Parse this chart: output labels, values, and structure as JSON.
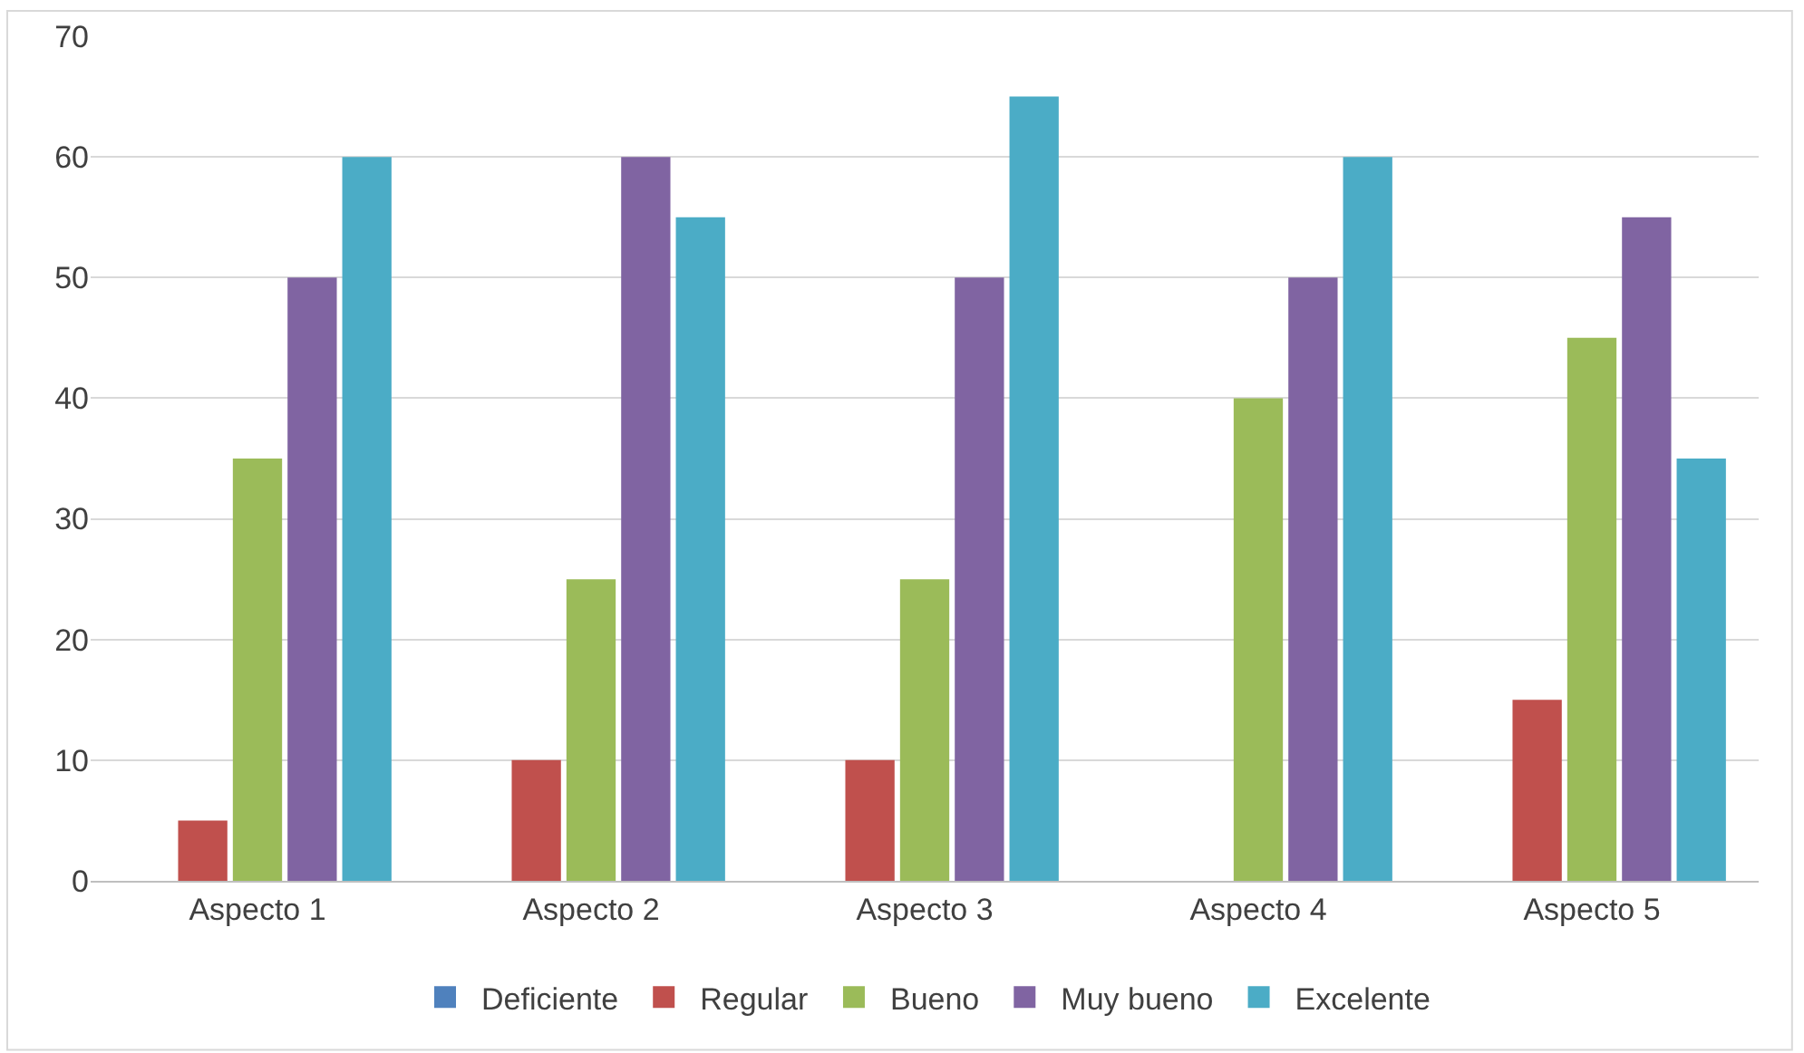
{
  "chart_data": {
    "type": "bar",
    "categories": [
      "Aspecto 1",
      "Aspecto 2",
      "Aspecto 3",
      "Aspecto 4",
      "Aspecto 5"
    ],
    "series": [
      {
        "name": "Deficiente",
        "color": "#4f81bd",
        "values": [
          0,
          0,
          0,
          0,
          0
        ]
      },
      {
        "name": "Regular",
        "color": "#c0504d",
        "values": [
          5,
          10,
          10,
          0,
          15
        ]
      },
      {
        "name": "Bueno",
        "color": "#9bbb59",
        "values": [
          35,
          25,
          25,
          40,
          45
        ]
      },
      {
        "name": "Muy bueno",
        "color": "#8064a2",
        "values": [
          50,
          60,
          50,
          50,
          55
        ]
      },
      {
        "name": "Excelente",
        "color": "#4bacc6",
        "values": [
          60,
          55,
          65,
          60,
          35
        ]
      }
    ],
    "ylim": [
      0,
      70
    ],
    "yticks": [
      0,
      10,
      20,
      30,
      40,
      50,
      60,
      70
    ],
    "grid": "y",
    "legend": "bottom"
  }
}
